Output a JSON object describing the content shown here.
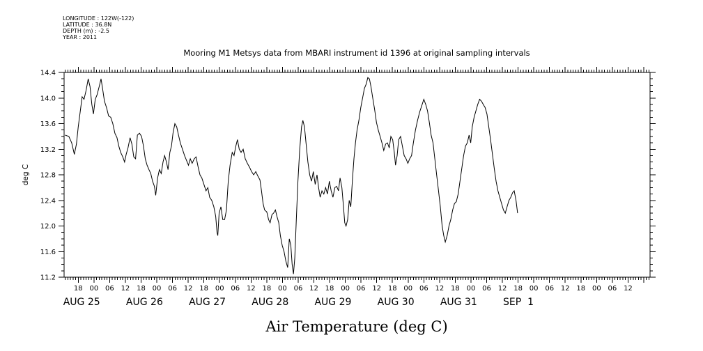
{
  "header": {
    "meta_lines": [
      "LONGITUDE : 122W(-122)",
      "LATITUDE : 36.8N",
      "DEPTH (m) : -2.5",
      "YEAR : 2011"
    ]
  },
  "chart_data": {
    "type": "line",
    "title": "Mooring M1 Metsys data from MBARI instrument id 1396 at original sampling intervals",
    "xlabel": "Air Temperature (deg C)",
    "ylabel": "deg C",
    "ylim": [
      11.2,
      14.4
    ],
    "y_ticks": [
      "11.2",
      "11.6",
      "12.0",
      "12.4",
      "12.8",
      "13.2",
      "13.6",
      "14.0",
      "14.4"
    ],
    "x_unit": "hours since 2011-08-25 00:00",
    "xlim": [
      12.6,
      236.4
    ],
    "x_hour_ticks": [
      {
        "h": 18,
        "label": "18"
      },
      {
        "h": 24,
        "label": "00"
      },
      {
        "h": 30,
        "label": "06"
      },
      {
        "h": 36,
        "label": "12"
      },
      {
        "h": 42,
        "label": "18"
      },
      {
        "h": 48,
        "label": "00"
      },
      {
        "h": 54,
        "label": "06"
      },
      {
        "h": 60,
        "label": "12"
      },
      {
        "h": 66,
        "label": "18"
      },
      {
        "h": 72,
        "label": "00"
      },
      {
        "h": 78,
        "label": "06"
      },
      {
        "h": 84,
        "label": "12"
      },
      {
        "h": 90,
        "label": "18"
      },
      {
        "h": 96,
        "label": "00"
      },
      {
        "h": 102,
        "label": "06"
      },
      {
        "h": 108,
        "label": "12"
      },
      {
        "h": 114,
        "label": "18"
      },
      {
        "h": 120,
        "label": "00"
      },
      {
        "h": 126,
        "label": "06"
      },
      {
        "h": 132,
        "label": "12"
      },
      {
        "h": 138,
        "label": "18"
      },
      {
        "h": 144,
        "label": "00"
      },
      {
        "h": 150,
        "label": "06"
      },
      {
        "h": 156,
        "label": "12"
      },
      {
        "h": 162,
        "label": "18"
      },
      {
        "h": 168,
        "label": "00"
      },
      {
        "h": 174,
        "label": "06"
      },
      {
        "h": 180,
        "label": "12"
      },
      {
        "h": 186,
        "label": "18"
      },
      {
        "h": 192,
        "label": "00"
      },
      {
        "h": 198,
        "label": "06"
      },
      {
        "h": 204,
        "label": "12"
      },
      {
        "h": 210,
        "label": "18"
      },
      {
        "h": 216,
        "label": "00"
      },
      {
        "h": 222,
        "label": "06"
      },
      {
        "h": 228,
        "label": "12"
      }
    ],
    "x_day_labels": [
      {
        "h": 12,
        "label": "AUG 25"
      },
      {
        "h": 36,
        "label": "AUG 26"
      },
      {
        "h": 60,
        "label": "AUG 27"
      },
      {
        "h": 84,
        "label": "AUG 28"
      },
      {
        "h": 108,
        "label": "AUG 29"
      },
      {
        "h": 132,
        "label": "AUG 30"
      },
      {
        "h": 156,
        "label": "AUG 31"
      },
      {
        "h": 180,
        "label": "SEP  1"
      }
    ],
    "series": [
      {
        "points": [
          [
            13.0,
            13.42
          ],
          [
            14.4,
            13.4
          ],
          [
            15.5,
            13.3
          ],
          [
            16.5,
            13.12
          ],
          [
            17.3,
            13.28
          ],
          [
            18.0,
            13.55
          ],
          [
            18.8,
            13.8
          ],
          [
            19.5,
            14.02
          ],
          [
            20.2,
            13.98
          ],
          [
            21.0,
            14.12
          ],
          [
            21.8,
            14.3
          ],
          [
            22.5,
            14.18
          ],
          [
            23.2,
            13.9
          ],
          [
            23.8,
            13.75
          ],
          [
            24.5,
            13.98
          ],
          [
            25.2,
            14.05
          ],
          [
            26.0,
            14.18
          ],
          [
            26.7,
            14.3
          ],
          [
            27.3,
            14.15
          ],
          [
            28.0,
            13.95
          ],
          [
            28.8,
            13.85
          ],
          [
            29.6,
            13.72
          ],
          [
            30.4,
            13.7
          ],
          [
            31.2,
            13.6
          ],
          [
            32.0,
            13.45
          ],
          [
            32.8,
            13.38
          ],
          [
            33.5,
            13.25
          ],
          [
            34.2,
            13.15
          ],
          [
            35.0,
            13.08
          ],
          [
            35.7,
            13.0
          ],
          [
            36.3,
            13.12
          ],
          [
            37.0,
            13.22
          ],
          [
            37.8,
            13.38
          ],
          [
            38.5,
            13.28
          ],
          [
            39.2,
            13.08
          ],
          [
            39.9,
            13.05
          ],
          [
            40.6,
            13.42
          ],
          [
            41.4,
            13.45
          ],
          [
            42.2,
            13.4
          ],
          [
            42.9,
            13.25
          ],
          [
            43.6,
            13.05
          ],
          [
            44.3,
            12.95
          ],
          [
            45.0,
            12.88
          ],
          [
            45.7,
            12.82
          ],
          [
            46.4,
            12.7
          ],
          [
            47.1,
            12.62
          ],
          [
            47.6,
            12.48
          ],
          [
            48.3,
            12.75
          ],
          [
            49.0,
            12.88
          ],
          [
            49.7,
            12.82
          ],
          [
            50.4,
            13.0
          ],
          [
            51.0,
            13.1
          ],
          [
            51.7,
            13.0
          ],
          [
            52.3,
            12.88
          ],
          [
            53.0,
            13.15
          ],
          [
            53.6,
            13.25
          ],
          [
            54.2,
            13.45
          ],
          [
            54.9,
            13.6
          ],
          [
            55.6,
            13.55
          ],
          [
            56.3,
            13.42
          ],
          [
            57.0,
            13.3
          ],
          [
            57.8,
            13.2
          ],
          [
            58.6,
            13.1
          ],
          [
            59.4,
            13.02
          ],
          [
            60.1,
            12.95
          ],
          [
            60.8,
            13.05
          ],
          [
            61.5,
            12.98
          ],
          [
            62.3,
            13.05
          ],
          [
            63.0,
            13.08
          ],
          [
            63.8,
            12.92
          ],
          [
            64.5,
            12.8
          ],
          [
            65.2,
            12.75
          ],
          [
            66.0,
            12.65
          ],
          [
            66.8,
            12.55
          ],
          [
            67.5,
            12.6
          ],
          [
            68.2,
            12.45
          ],
          [
            69.0,
            12.4
          ],
          [
            69.8,
            12.3
          ],
          [
            70.5,
            12.15
          ],
          [
            71.0,
            11.9
          ],
          [
            71.3,
            11.85
          ],
          [
            71.8,
            12.2
          ],
          [
            72.5,
            12.3
          ],
          [
            73.2,
            12.1
          ],
          [
            73.9,
            12.1
          ],
          [
            74.6,
            12.25
          ],
          [
            75.3,
            12.7
          ],
          [
            76.0,
            12.95
          ],
          [
            76.8,
            13.15
          ],
          [
            77.5,
            13.1
          ],
          [
            78.2,
            13.25
          ],
          [
            78.8,
            13.35
          ],
          [
            79.5,
            13.2
          ],
          [
            80.2,
            13.15
          ],
          [
            81.0,
            13.2
          ],
          [
            81.8,
            13.05
          ],
          [
            82.6,
            12.98
          ],
          [
            83.4,
            12.92
          ],
          [
            84.2,
            12.85
          ],
          [
            85.0,
            12.8
          ],
          [
            85.8,
            12.85
          ],
          [
            86.6,
            12.78
          ],
          [
            87.4,
            12.72
          ],
          [
            88.0,
            12.55
          ],
          [
            88.6,
            12.35
          ],
          [
            89.2,
            12.25
          ],
          [
            90.0,
            12.22
          ],
          [
            90.7,
            12.1
          ],
          [
            91.3,
            12.05
          ],
          [
            92.0,
            12.18
          ],
          [
            92.6,
            12.2
          ],
          [
            93.3,
            12.25
          ],
          [
            93.9,
            12.15
          ],
          [
            94.6,
            12.05
          ],
          [
            95.2,
            11.85
          ],
          [
            95.9,
            11.7
          ],
          [
            96.6,
            11.6
          ],
          [
            97.3,
            11.45
          ],
          [
            98.0,
            11.35
          ],
          [
            98.6,
            11.8
          ],
          [
            99.2,
            11.7
          ],
          [
            99.7,
            11.4
          ],
          [
            100.2,
            11.25
          ],
          [
            100.7,
            11.5
          ],
          [
            101.3,
            12.1
          ],
          [
            101.9,
            12.7
          ],
          [
            102.6,
            13.2
          ],
          [
            103.3,
            13.55
          ],
          [
            103.8,
            13.65
          ],
          [
            104.4,
            13.55
          ],
          [
            105.0,
            13.3
          ],
          [
            105.7,
            13.0
          ],
          [
            106.4,
            12.8
          ],
          [
            107.1,
            12.7
          ],
          [
            107.8,
            12.85
          ],
          [
            108.5,
            12.65
          ],
          [
            109.2,
            12.8
          ],
          [
            109.8,
            12.6
          ],
          [
            110.4,
            12.45
          ],
          [
            111.1,
            12.55
          ],
          [
            111.8,
            12.5
          ],
          [
            112.5,
            12.6
          ],
          [
            113.2,
            12.5
          ],
          [
            113.9,
            12.7
          ],
          [
            114.6,
            12.55
          ],
          [
            115.3,
            12.45
          ],
          [
            116.0,
            12.6
          ],
          [
            116.7,
            12.62
          ],
          [
            117.4,
            12.55
          ],
          [
            118.0,
            12.75
          ],
          [
            118.7,
            12.6
          ],
          [
            119.3,
            12.3
          ],
          [
            119.8,
            12.05
          ],
          [
            120.3,
            12.0
          ],
          [
            120.9,
            12.1
          ],
          [
            121.5,
            12.4
          ],
          [
            122.1,
            12.3
          ],
          [
            122.7,
            12.7
          ],
          [
            123.3,
            13.05
          ],
          [
            123.9,
            13.3
          ],
          [
            124.5,
            13.5
          ],
          [
            125.2,
            13.65
          ],
          [
            125.9,
            13.85
          ],
          [
            126.6,
            14.0
          ],
          [
            127.3,
            14.15
          ],
          [
            128.0,
            14.22
          ],
          [
            128.6,
            14.32
          ],
          [
            129.2,
            14.3
          ],
          [
            129.8,
            14.18
          ],
          [
            130.5,
            14.0
          ],
          [
            131.2,
            13.82
          ],
          [
            131.9,
            13.62
          ],
          [
            132.6,
            13.5
          ],
          [
            133.3,
            13.4
          ],
          [
            134.0,
            13.3
          ],
          [
            134.7,
            13.18
          ],
          [
            135.4,
            13.28
          ],
          [
            136.1,
            13.3
          ],
          [
            136.8,
            13.22
          ],
          [
            137.4,
            13.4
          ],
          [
            138.1,
            13.35
          ],
          [
            138.7,
            13.15
          ],
          [
            139.2,
            12.95
          ],
          [
            139.8,
            13.1
          ],
          [
            140.4,
            13.35
          ],
          [
            141.1,
            13.4
          ],
          [
            141.8,
            13.25
          ],
          [
            142.5,
            13.1
          ],
          [
            143.2,
            13.05
          ],
          [
            143.9,
            12.98
          ],
          [
            144.6,
            13.05
          ],
          [
            145.3,
            13.1
          ],
          [
            146.0,
            13.3
          ],
          [
            146.8,
            13.5
          ],
          [
            147.6,
            13.65
          ],
          [
            148.4,
            13.78
          ],
          [
            149.2,
            13.88
          ],
          [
            150.0,
            13.98
          ],
          [
            150.7,
            13.9
          ],
          [
            151.4,
            13.8
          ],
          [
            152.1,
            13.62
          ],
          [
            152.8,
            13.42
          ],
          [
            153.5,
            13.3
          ],
          [
            154.2,
            13.05
          ],
          [
            154.9,
            12.8
          ],
          [
            155.6,
            12.55
          ],
          [
            156.3,
            12.3
          ],
          [
            157.0,
            12.0
          ],
          [
            157.6,
            11.85
          ],
          [
            158.2,
            11.75
          ],
          [
            158.9,
            11.85
          ],
          [
            159.6,
            12.0
          ],
          [
            160.3,
            12.1
          ],
          [
            161.0,
            12.25
          ],
          [
            161.7,
            12.35
          ],
          [
            162.4,
            12.38
          ],
          [
            163.1,
            12.5
          ],
          [
            163.8,
            12.7
          ],
          [
            164.5,
            12.9
          ],
          [
            165.2,
            13.1
          ],
          [
            165.9,
            13.25
          ],
          [
            166.6,
            13.3
          ],
          [
            167.3,
            13.42
          ],
          [
            167.9,
            13.3
          ],
          [
            168.5,
            13.55
          ],
          [
            169.2,
            13.7
          ],
          [
            169.9,
            13.8
          ],
          [
            170.6,
            13.9
          ],
          [
            171.3,
            13.98
          ],
          [
            172.0,
            13.95
          ],
          [
            172.7,
            13.9
          ],
          [
            173.4,
            13.85
          ],
          [
            174.1,
            13.75
          ],
          [
            174.8,
            13.55
          ],
          [
            175.5,
            13.35
          ],
          [
            176.2,
            13.12
          ],
          [
            176.9,
            12.9
          ],
          [
            177.6,
            12.7
          ],
          [
            178.3,
            12.55
          ],
          [
            179.0,
            12.45
          ],
          [
            179.7,
            12.35
          ],
          [
            180.4,
            12.25
          ],
          [
            181.1,
            12.2
          ],
          [
            181.8,
            12.3
          ],
          [
            182.5,
            12.4
          ],
          [
            183.2,
            12.45
          ],
          [
            183.9,
            12.52
          ],
          [
            184.5,
            12.55
          ],
          [
            185.2,
            12.4
          ],
          [
            185.8,
            12.2
          ]
        ]
      }
    ]
  }
}
